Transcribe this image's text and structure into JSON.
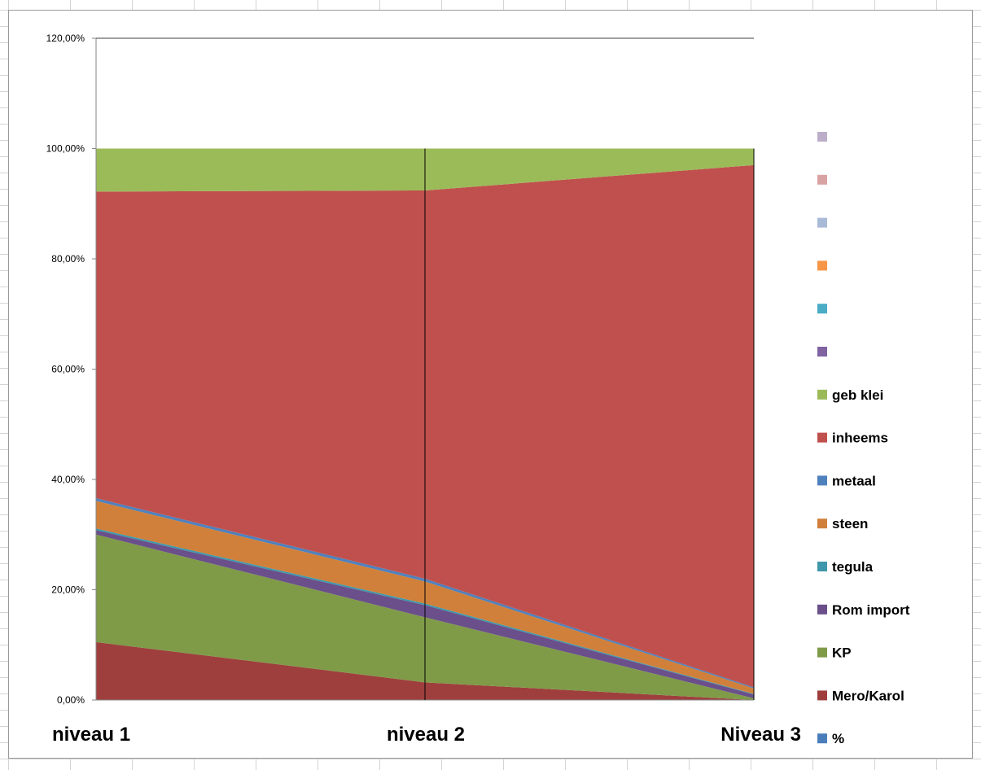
{
  "chart_data": {
    "type": "area",
    "stacked": true,
    "categories": [
      "niveau 1",
      "niveau 2",
      "Niveau 3"
    ],
    "ylim": [
      0,
      1.2
    ],
    "y_ticks": [
      "0,00%",
      "20,00%",
      "40,00%",
      "60,00%",
      "80,00%",
      "100,00%",
      "120,00%"
    ],
    "grid": false,
    "legend_position": "right",
    "series": [
      {
        "name": "%",
        "color": "#4a7ebb",
        "values": [
          0,
          0,
          0
        ]
      },
      {
        "name": "Mero/Karol",
        "color": "#9e3f3d",
        "values": [
          0.105,
          0.032,
          0.0
        ]
      },
      {
        "name": "KP",
        "color": "#7f9b48",
        "values": [
          0.195,
          0.118,
          0.003
        ]
      },
      {
        "name": "Rom import",
        "color": "#6a4f8a",
        "values": [
          0.008,
          0.022,
          0.007
        ]
      },
      {
        "name": "tegula",
        "color": "#3e97aa",
        "values": [
          0.003,
          0.003,
          0.001
        ]
      },
      {
        "name": "steen",
        "color": "#d0803a",
        "values": [
          0.05,
          0.04,
          0.01
        ]
      },
      {
        "name": "metaal",
        "color": "#4f81bd",
        "values": [
          0.005,
          0.005,
          0.002
        ]
      },
      {
        "name": "inheems",
        "color": "#c0504d",
        "values": [
          0.556,
          0.704,
          0.947
        ]
      },
      {
        "name": "geb klei",
        "color": "#9bbb59",
        "values": [
          0.078,
          0.076,
          0.03
        ]
      },
      {
        "name": "",
        "color": "#8064a2",
        "values": [
          0,
          0,
          0
        ]
      },
      {
        "name": "",
        "color": "#4bacc6",
        "values": [
          0,
          0,
          0
        ]
      },
      {
        "name": "",
        "color": "#f79646",
        "values": [
          0,
          0,
          0
        ]
      },
      {
        "name": "",
        "color": "#a9bad7",
        "values": [
          0,
          0,
          0
        ]
      },
      {
        "name": "",
        "color": "#d9a3a3",
        "values": [
          0,
          0,
          0
        ]
      },
      {
        "name": "",
        "color": "#bcaec9",
        "values": [
          0,
          0,
          0
        ]
      }
    ]
  }
}
